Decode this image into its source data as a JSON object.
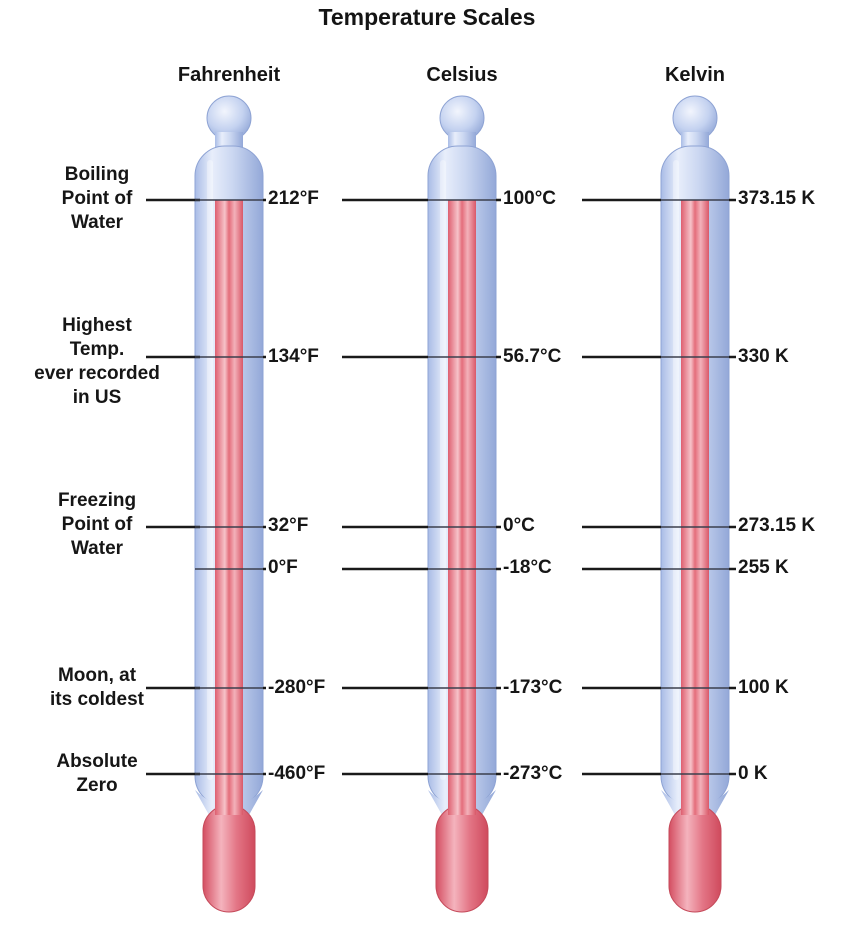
{
  "title": "Temperature Scales",
  "scales": [
    {
      "name": "Fahrenheit"
    },
    {
      "name": "Celsius"
    },
    {
      "name": "Kelvin"
    }
  ],
  "rows": [
    {
      "label": "Boiling\nPoint of\nWater",
      "values": [
        "212°F",
        "100°C",
        "373.15 K"
      ]
    },
    {
      "label": "Highest\nTemp.\never recorded\nin US",
      "values": [
        "134°F",
        "56.7°C",
        "330 K"
      ]
    },
    {
      "label": "Freezing\nPoint of\nWater",
      "values": [
        "32°F",
        "0°C",
        "273.15 K"
      ]
    },
    {
      "label": "",
      "values": [
        "0°F",
        "-18°C",
        "255 K"
      ]
    },
    {
      "label": "Moon, at\nits coldest",
      "values": [
        "-280°F",
        "-173°C",
        "100 K"
      ]
    },
    {
      "label": "Absolute\nZero",
      "values": [
        "-460°F",
        "-273°C",
        "0 K"
      ]
    }
  ],
  "colors": {
    "glass": "#c9d6f2",
    "glass_edge": "#8ea3d4",
    "mercury": "#e4727f",
    "mercury_light": "#f4b6bf",
    "line": "#1a1a1a"
  },
  "icons": [
    "thermometer-icon"
  ]
}
